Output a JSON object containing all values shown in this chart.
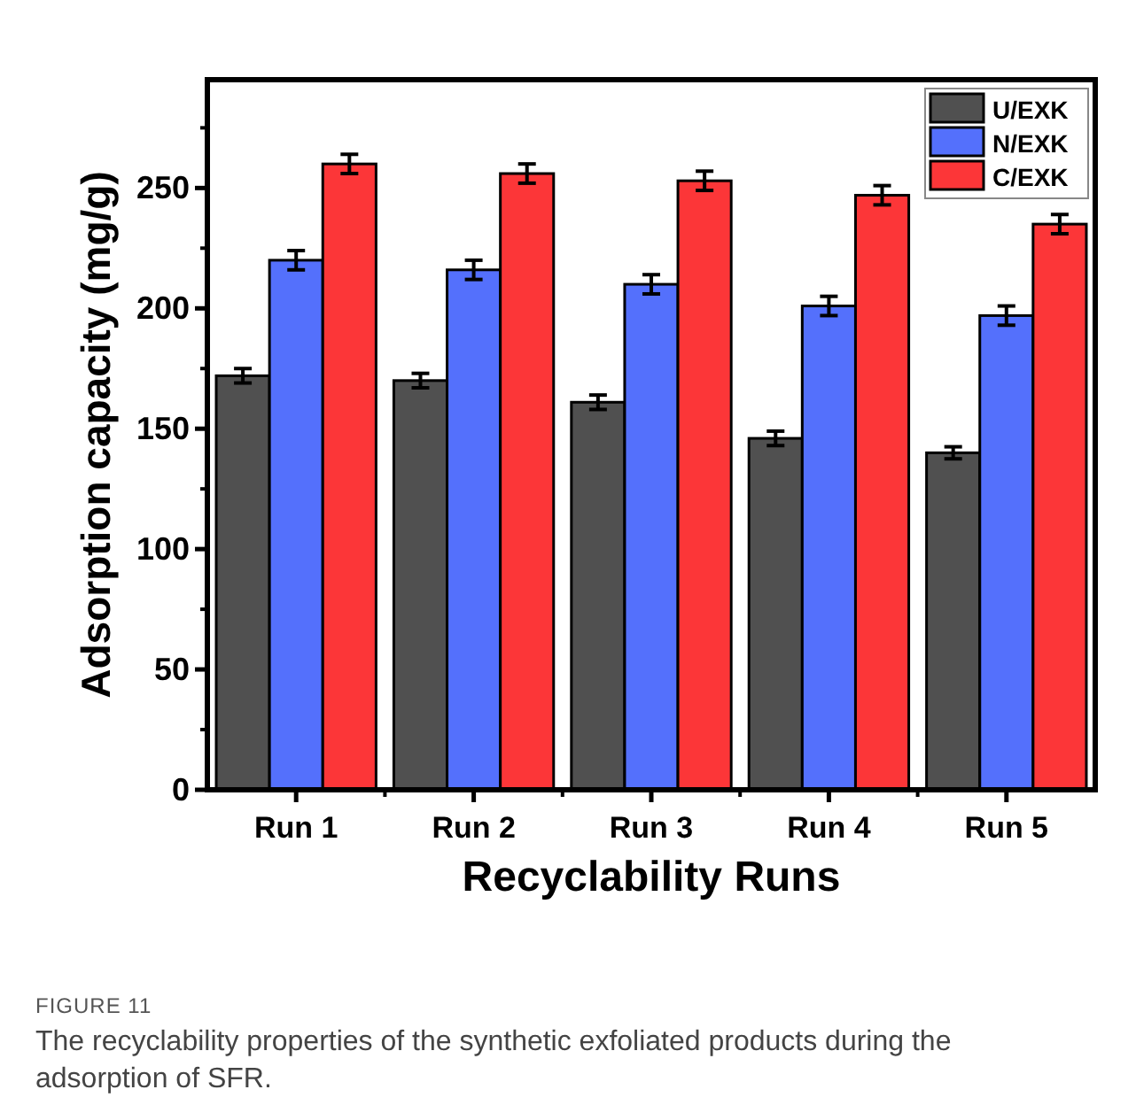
{
  "chart_data": {
    "type": "bar",
    "categories": [
      "Run 1",
      "Run 2",
      "Run 3",
      "Run 4",
      "Run 5"
    ],
    "xlabel": "Recyclability Runs",
    "ylabel": "Adsorption capacity (mg/g)",
    "ylim": [
      0,
      295
    ],
    "yticks": [
      0,
      50,
      100,
      150,
      200,
      250
    ],
    "grid": false,
    "legend": "top right",
    "series": [
      {
        "name": "U/EXK",
        "color": "#505050",
        "values": [
          172,
          170,
          161,
          146,
          140
        ],
        "errors": [
          3,
          3,
          3,
          3,
          2.5
        ]
      },
      {
        "name": "N/EXK",
        "color": "#5470fc",
        "values": [
          220,
          216,
          210,
          201,
          197
        ],
        "errors": [
          4,
          4,
          4,
          4,
          4
        ]
      },
      {
        "name": "C/EXK",
        "color": "#fc3638",
        "values": [
          260,
          256,
          253,
          247,
          235
        ],
        "errors": [
          4,
          4,
          4,
          4,
          4
        ]
      }
    ],
    "annotations": [
      "FIGURE 11",
      "The recyclability properties of the synthetic exfoliated products during the adsorption of SFR."
    ]
  }
}
